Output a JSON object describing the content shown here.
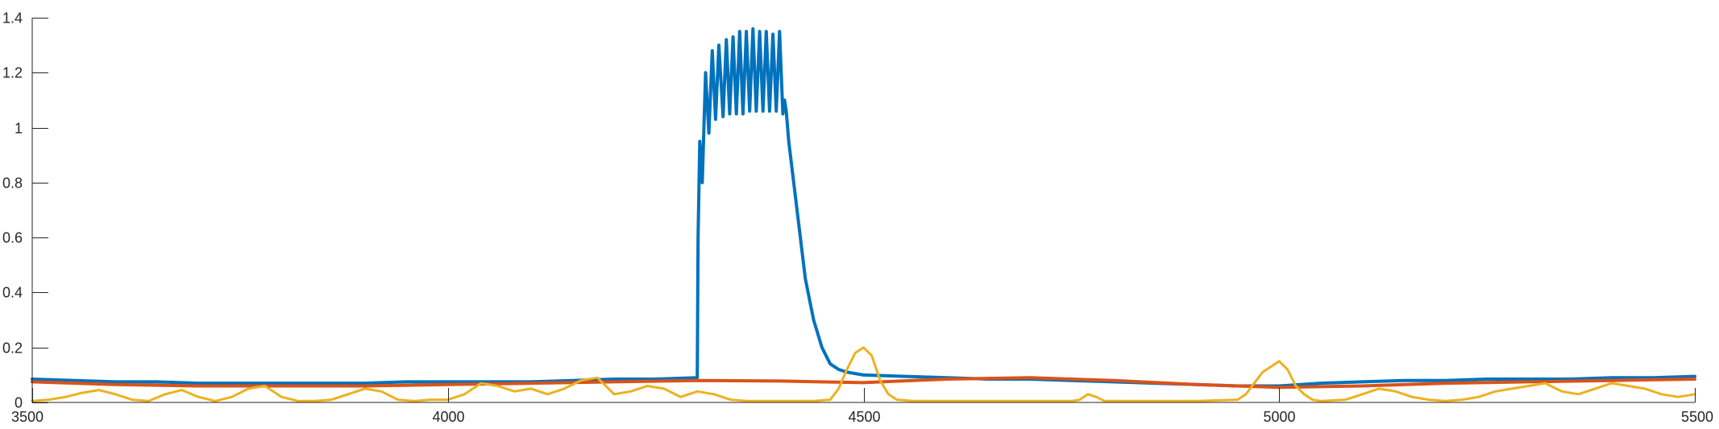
{
  "chart_data": {
    "type": "line",
    "title": "",
    "xlabel": "",
    "ylabel": "",
    "xlim": [
      3500,
      5500
    ],
    "ylim": [
      0,
      1.4
    ],
    "xticks": [
      3500,
      4000,
      4500,
      5000,
      5500
    ],
    "xtick_labels": [
      "3500",
      "4000",
      "4500",
      "5000",
      "5500"
    ],
    "yticks": [
      0,
      0.2,
      0.4,
      0.6,
      0.8,
      1,
      1.2,
      1.4
    ],
    "ytick_labels": [
      "0",
      "0.2",
      "0.4",
      "0.6",
      "0.8",
      "1",
      "1.2",
      "1.4"
    ],
    "grid": false,
    "legend": "none",
    "series": [
      {
        "color": "#0072BD",
        "x": [
          3500,
          3550,
          3600,
          3650,
          3700,
          3750,
          3800,
          3850,
          3900,
          3950,
          4000,
          4050,
          4100,
          4150,
          4200,
          4250,
          4300,
          4301,
          4303,
          4306,
          4310,
          4314,
          4318,
          4322,
          4326,
          4331,
          4335,
          4339,
          4343,
          4347,
          4351,
          4355,
          4359,
          4363,
          4367,
          4371,
          4375,
          4379,
          4383,
          4387,
          4391,
          4395,
          4399,
          4403,
          4405,
          4407,
          4410,
          4420,
          4430,
          4440,
          4450,
          4460,
          4470,
          4480,
          4490,
          4500,
          4550,
          4600,
          4650,
          4700,
          4750,
          4800,
          4850,
          4900,
          4950,
          5000,
          5050,
          5100,
          5150,
          5200,
          5250,
          5300,
          5350,
          5400,
          5450,
          5500
        ],
        "y": [
          0.085,
          0.08,
          0.075,
          0.075,
          0.07,
          0.07,
          0.07,
          0.07,
          0.07,
          0.075,
          0.075,
          0.075,
          0.075,
          0.08,
          0.085,
          0.085,
          0.09,
          0.6,
          0.95,
          0.8,
          1.2,
          0.98,
          1.28,
          1.03,
          1.3,
          1.04,
          1.32,
          1.05,
          1.33,
          1.05,
          1.35,
          1.05,
          1.35,
          1.06,
          1.36,
          1.06,
          1.35,
          1.06,
          1.35,
          1.06,
          1.34,
          1.06,
          1.35,
          1.05,
          1.1,
          1.06,
          0.95,
          0.7,
          0.45,
          0.3,
          0.2,
          0.14,
          0.12,
          0.11,
          0.105,
          0.1,
          0.095,
          0.09,
          0.085,
          0.085,
          0.08,
          0.075,
          0.07,
          0.065,
          0.06,
          0.06,
          0.07,
          0.075,
          0.08,
          0.08,
          0.085,
          0.085,
          0.085,
          0.09,
          0.09,
          0.095
        ]
      },
      {
        "color": "#D95319",
        "x": [
          3500,
          3600,
          3700,
          3800,
          3900,
          4000,
          4100,
          4200,
          4300,
          4400,
          4500,
          4600,
          4700,
          4800,
          4900,
          5000,
          5100,
          5200,
          5300,
          5400,
          5500
        ],
        "y": [
          0.075,
          0.065,
          0.06,
          0.06,
          0.06,
          0.065,
          0.07,
          0.075,
          0.08,
          0.078,
          0.072,
          0.085,
          0.09,
          0.08,
          0.065,
          0.055,
          0.06,
          0.07,
          0.075,
          0.08,
          0.085
        ]
      },
      {
        "color": "#EDB120",
        "x": [
          3500,
          3520,
          3540,
          3560,
          3580,
          3600,
          3620,
          3640,
          3660,
          3680,
          3700,
          3720,
          3740,
          3760,
          3780,
          3800,
          3820,
          3840,
          3860,
          3880,
          3900,
          3920,
          3940,
          3960,
          3980,
          4000,
          4020,
          4040,
          4060,
          4080,
          4100,
          4120,
          4140,
          4160,
          4180,
          4200,
          4220,
          4240,
          4260,
          4280,
          4300,
          4320,
          4340,
          4360,
          4380,
          4400,
          4420,
          4440,
          4460,
          4470,
          4480,
          4490,
          4500,
          4510,
          4520,
          4530,
          4540,
          4560,
          4600,
          4650,
          4700,
          4750,
          4760,
          4770,
          4780,
          4790,
          4800,
          4850,
          4900,
          4950,
          4960,
          4970,
          4980,
          4990,
          5000,
          5010,
          5020,
          5030,
          5040,
          5050,
          5080,
          5100,
          5120,
          5140,
          5160,
          5180,
          5200,
          5220,
          5240,
          5260,
          5280,
          5300,
          5320,
          5340,
          5360,
          5380,
          5400,
          5420,
          5440,
          5460,
          5480,
          5500
        ],
        "y": [
          0.005,
          0.01,
          0.02,
          0.035,
          0.045,
          0.03,
          0.01,
          0.005,
          0.03,
          0.045,
          0.02,
          0.005,
          0.02,
          0.05,
          0.06,
          0.02,
          0.005,
          0.005,
          0.01,
          0.03,
          0.05,
          0.04,
          0.01,
          0.005,
          0.01,
          0.01,
          0.03,
          0.07,
          0.06,
          0.04,
          0.05,
          0.03,
          0.05,
          0.08,
          0.09,
          0.03,
          0.04,
          0.06,
          0.05,
          0.02,
          0.04,
          0.03,
          0.01,
          0.005,
          0.005,
          0.005,
          0.005,
          0.005,
          0.01,
          0.05,
          0.12,
          0.18,
          0.2,
          0.17,
          0.08,
          0.03,
          0.01,
          0.005,
          0.005,
          0.005,
          0.005,
          0.005,
          0.01,
          0.03,
          0.02,
          0.005,
          0.005,
          0.005,
          0.005,
          0.01,
          0.03,
          0.07,
          0.11,
          0.13,
          0.15,
          0.12,
          0.06,
          0.03,
          0.01,
          0.005,
          0.01,
          0.03,
          0.05,
          0.04,
          0.02,
          0.01,
          0.005,
          0.01,
          0.02,
          0.04,
          0.05,
          0.06,
          0.07,
          0.04,
          0.03,
          0.05,
          0.07,
          0.06,
          0.05,
          0.03,
          0.02,
          0.03
        ]
      }
    ]
  }
}
